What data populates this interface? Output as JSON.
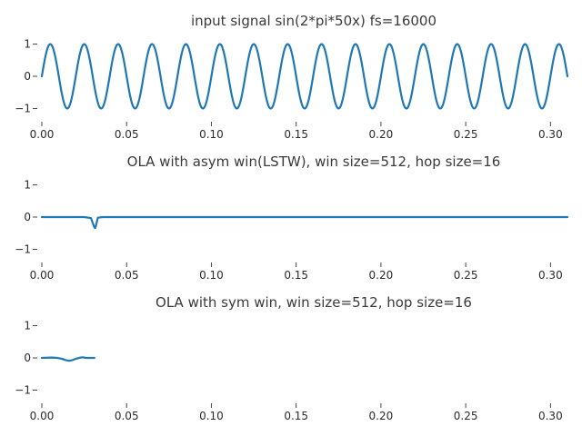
{
  "chart_data": [
    {
      "type": "line",
      "title": "input signal sin(2*pi*50x) fs=16000",
      "xlabel": "",
      "ylabel": "",
      "xlim": [
        0.0,
        0.31
      ],
      "ylim": [
        -1.1,
        1.1
      ],
      "xticks": [
        "0.00",
        "0.05",
        "0.10",
        "0.15",
        "0.20",
        "0.25",
        "0.30"
      ],
      "yticks": [
        "1",
        "0",
        "−1"
      ],
      "grid": false,
      "series": [
        {
          "description": "sin(2*pi*50*x), sampled at 16000 Hz, x from 0 to 0.31 s",
          "formula": {
            "kind": "sine",
            "frequency": 50,
            "amplitude": 1.0
          }
        }
      ]
    },
    {
      "type": "line",
      "title": "OLA with asym win(LSTW), win size=512, hop size=16",
      "xlabel": "",
      "ylabel": "",
      "xlim": [
        0.0,
        0.31
      ],
      "ylim": [
        -1.1,
        1.1
      ],
      "xticks": [
        "0.00",
        "0.05",
        "0.10",
        "0.15",
        "0.20",
        "0.25",
        "0.30"
      ],
      "yticks": [
        "1",
        "0",
        "−1"
      ],
      "grid": false,
      "series": [
        {
          "x": [
            0.0,
            0.025,
            0.029,
            0.03,
            0.031,
            0.0315,
            0.032,
            0.033,
            0.036,
            0.31
          ],
          "y": [
            0.0,
            0.0,
            -0.03,
            -0.18,
            -0.32,
            -0.34,
            -0.25,
            -0.02,
            0.0,
            0.0
          ]
        }
      ]
    },
    {
      "type": "line",
      "title": "OLA with sym win, win size=512, hop size=16",
      "xlabel": "",
      "ylabel": "",
      "xlim": [
        0.0,
        0.31
      ],
      "ylim": [
        -1.1,
        1.1
      ],
      "xticks": [
        "0.00",
        "0.05",
        "0.10",
        "0.15",
        "0.20",
        "0.25",
        "0.30"
      ],
      "yticks": [
        "1",
        "0",
        "−1"
      ],
      "grid": false,
      "series": [
        {
          "x": [
            0.0,
            0.006,
            0.009,
            0.012,
            0.014,
            0.016,
            0.018,
            0.02,
            0.022,
            0.024,
            0.026,
            0.031
          ],
          "y": [
            0.0,
            0.01,
            0.0,
            -0.03,
            -0.07,
            -0.09,
            -0.07,
            -0.03,
            0.0,
            0.02,
            0.0,
            0.0
          ]
        }
      ]
    }
  ]
}
